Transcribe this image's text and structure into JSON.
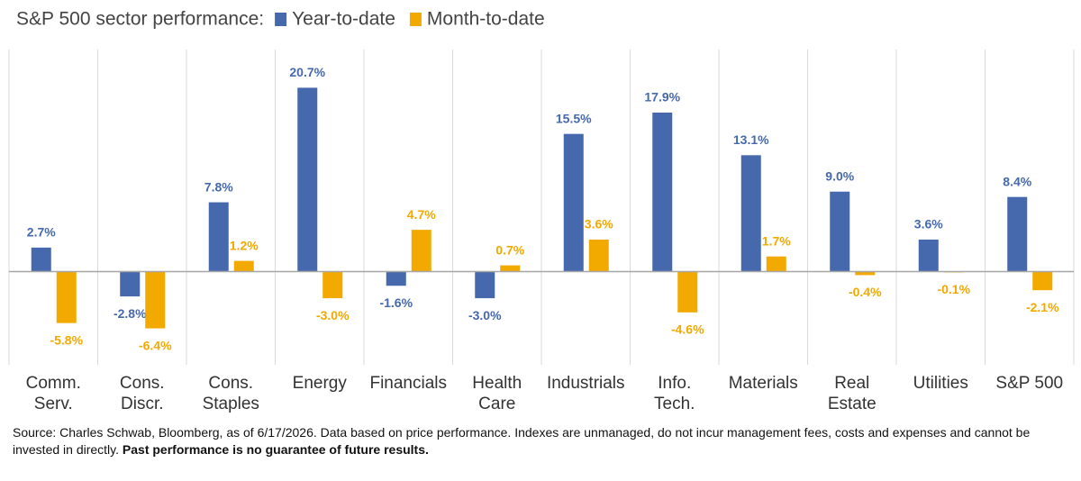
{
  "chart_data": {
    "type": "bar",
    "title": "S&P 500 sector performance:",
    "categories": [
      "Comm.\nServ.",
      "Cons.\nDiscr.",
      "Cons.\nStaples",
      "Energy",
      "Financials",
      "Health\nCare",
      "Industrials",
      "Info.\nTech.",
      "Materials",
      "Real\nEstate",
      "Utilities",
      "S&P 500"
    ],
    "series": [
      {
        "name": "Year-to-date",
        "color": "#4668ad",
        "values": [
          2.7,
          -2.8,
          7.8,
          20.7,
          -1.6,
          -3.0,
          15.5,
          17.9,
          13.1,
          9.0,
          3.6,
          8.4
        ],
        "value_labels": [
          "2.7%",
          "-2.8%",
          "7.8%",
          "20.7%",
          "-1.6%",
          "-3.0%",
          "15.5%",
          "17.9%",
          "13.1%",
          "9.0%",
          "3.6%",
          "8.4%"
        ]
      },
      {
        "name": "Month-to-date",
        "color": "#f2a900",
        "values": [
          -5.8,
          -6.4,
          1.2,
          -3.0,
          4.7,
          0.7,
          3.6,
          -4.6,
          1.7,
          -0.4,
          -0.1,
          -2.1
        ],
        "value_labels": [
          "-5.8%",
          "-6.4%",
          "1.2%",
          "-3.0%",
          "4.7%",
          "0.7%",
          "3.6%",
          "-4.6%",
          "1.7%",
          "-0.4%",
          "-0.1%",
          "-2.1%"
        ]
      }
    ],
    "ylim": [
      -10.5,
      25
    ],
    "source": "Source: Charles Schwab, Bloomberg, as of 6/17/2026.  Data based on price performance. Indexes are unmanaged, do not incur management fees, costs and expenses and cannot be invested in directly.",
    "disclaimer": "Past performance is no guarantee of future results."
  }
}
